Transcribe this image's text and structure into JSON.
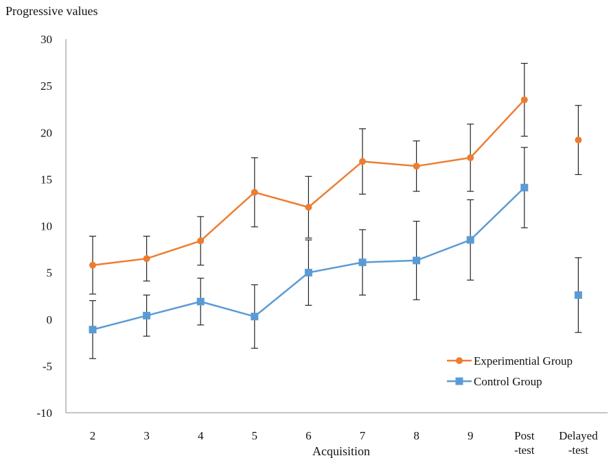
{
  "chart_data": {
    "type": "line",
    "ylabel": "Progressive values",
    "xlabel": "Acquisition",
    "categories": [
      "2",
      "3",
      "4",
      "5",
      "6",
      "7",
      "8",
      "9",
      "Post\n-test",
      "Delayed\n-test"
    ],
    "ylim": [
      -10,
      30
    ],
    "yticks": [
      30,
      25,
      20,
      15,
      10,
      5,
      0,
      -5,
      -10
    ],
    "grid": false,
    "legend_position": "bottom-right",
    "series": [
      {
        "name": "Experimential Group",
        "color": "#ED7D31",
        "marker": "circle",
        "values": [
          5.8,
          6.5,
          8.4,
          13.6,
          12.0,
          16.9,
          16.4,
          17.3,
          23.5,
          19.2
        ],
        "error": [
          3.1,
          2.4,
          2.6,
          3.7,
          3.3,
          3.5,
          2.7,
          3.6,
          3.9,
          3.7
        ],
        "connected_through": 8
      },
      {
        "name": "Control Group",
        "color": "#5B9BD5",
        "marker": "square",
        "values": [
          -1.1,
          0.4,
          1.9,
          0.3,
          5.0,
          6.1,
          6.3,
          8.5,
          14.1,
          2.6
        ],
        "error": [
          3.1,
          2.2,
          2.5,
          3.4,
          3.5,
          3.5,
          4.2,
          4.3,
          4.3,
          4.0
        ],
        "connected_through": 8
      }
    ]
  }
}
